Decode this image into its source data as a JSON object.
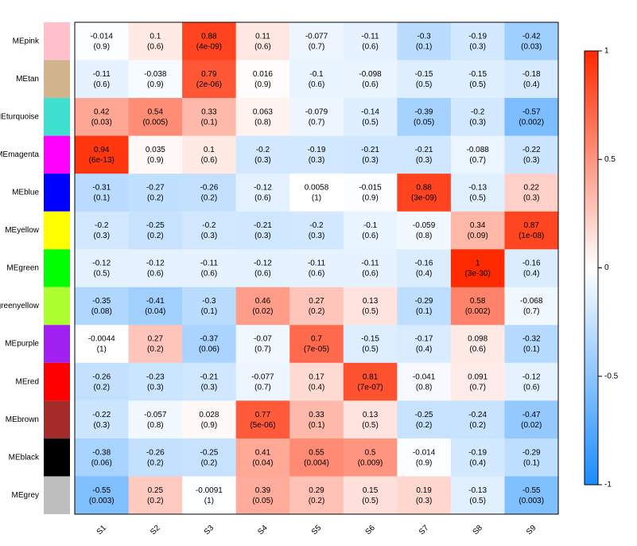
{
  "chart_data": {
    "type": "heatmap",
    "columns": [
      "S1",
      "S2",
      "S3",
      "S4",
      "S5",
      "S6",
      "S7",
      "S8",
      "S9"
    ],
    "rows": [
      "MEpink",
      "MEtan",
      "MEturquoise",
      "MEmagenta",
      "MEblue",
      "MEyellow",
      "MEgreen",
      "MEgreenyellow",
      "MEpurple",
      "MEred",
      "MEbrown",
      "MEblack",
      "MEgrey"
    ],
    "row_colors": [
      "#FFC0CB",
      "#D2B48C",
      "#40E0D0",
      "#FF00FF",
      "#0000FF",
      "#FFFF00",
      "#00FF00",
      "#ADFF2F",
      "#A020F0",
      "#FF0000",
      "#A52A2A",
      "#000000",
      "#BEBEBE"
    ],
    "values": [
      [
        -0.014,
        0.1,
        0.88,
        0.11,
        -0.077,
        -0.11,
        -0.3,
        -0.19,
        -0.42
      ],
      [
        -0.11,
        -0.038,
        0.79,
        0.016,
        -0.1,
        -0.098,
        -0.15,
        -0.15,
        -0.18
      ],
      [
        0.42,
        0.54,
        0.33,
        0.063,
        -0.079,
        -0.14,
        -0.39,
        -0.2,
        -0.57
      ],
      [
        0.94,
        0.035,
        0.1,
        -0.2,
        -0.19,
        -0.21,
        -0.21,
        -0.088,
        -0.22
      ],
      [
        -0.31,
        -0.27,
        -0.26,
        -0.12,
        0.0058,
        -0.015,
        0.88,
        -0.13,
        0.22
      ],
      [
        -0.2,
        -0.25,
        -0.2,
        -0.21,
        -0.2,
        -0.1,
        -0.059,
        0.34,
        0.87
      ],
      [
        -0.12,
        -0.12,
        -0.11,
        -0.12,
        -0.11,
        -0.11,
        -0.16,
        1,
        -0.16
      ],
      [
        -0.35,
        -0.41,
        -0.3,
        0.46,
        0.27,
        0.13,
        -0.29,
        0.58,
        -0.068
      ],
      [
        -0.0044,
        0.27,
        -0.37,
        -0.07,
        0.7,
        -0.15,
        -0.17,
        0.098,
        -0.32
      ],
      [
        -0.26,
        -0.23,
        -0.21,
        -0.077,
        0.17,
        0.81,
        -0.041,
        0.091,
        -0.12
      ],
      [
        -0.22,
        -0.057,
        0.028,
        0.77,
        0.33,
        0.13,
        -0.25,
        -0.24,
        -0.47
      ],
      [
        -0.38,
        -0.26,
        -0.25,
        0.41,
        0.55,
        0.5,
        -0.014,
        -0.19,
        -0.29
      ],
      [
        -0.55,
        0.25,
        -0.0091,
        0.39,
        0.29,
        0.15,
        0.19,
        -0.13,
        -0.55
      ]
    ],
    "p_values": [
      [
        0.9,
        0.6,
        4e-09,
        0.6,
        0.7,
        0.6,
        0.1,
        0.3,
        0.03
      ],
      [
        0.6,
        0.9,
        2e-06,
        0.9,
        0.6,
        0.6,
        0.5,
        0.5,
        0.4
      ],
      [
        0.03,
        0.005,
        0.1,
        0.8,
        0.7,
        0.5,
        0.05,
        0.3,
        0.002
      ],
      [
        6e-13,
        0.9,
        0.6,
        0.3,
        0.3,
        0.3,
        0.3,
        0.7,
        0.3
      ],
      [
        0.1,
        0.2,
        0.2,
        0.6,
        1,
        0.9,
        3e-09,
        0.5,
        0.3
      ],
      [
        0.3,
        0.2,
        0.3,
        0.3,
        0.3,
        0.6,
        0.8,
        0.09,
        1e-08
      ],
      [
        0.5,
        0.6,
        0.6,
        0.6,
        0.6,
        0.6,
        0.4,
        3e-30,
        0.4
      ],
      [
        0.08,
        0.04,
        0.1,
        0.02,
        0.2,
        0.5,
        0.1,
        0.002,
        0.7
      ],
      [
        1,
        0.2,
        0.06,
        0.7,
        7e-05,
        0.5,
        0.4,
        0.6,
        0.1
      ],
      [
        0.2,
        0.3,
        0.3,
        0.7,
        0.4,
        7e-07,
        0.8,
        0.7,
        0.6
      ],
      [
        0.3,
        0.8,
        0.9,
        5e-06,
        0.1,
        0.5,
        0.2,
        0.2,
        0.02
      ],
      [
        0.06,
        0.2,
        0.2,
        0.04,
        0.004,
        0.009,
        0.9,
        0.4,
        0.1
      ],
      [
        0.003,
        0.2,
        1,
        0.05,
        0.2,
        0.5,
        0.3,
        0.5,
        0.003
      ]
    ],
    "p_value_labels": [
      [
        "(0.9)",
        "(0.6)",
        "(4e-09)",
        "(0.6)",
        "(0.7)",
        "(0.6)",
        "(0.1)",
        "(0.3)",
        "(0.03)"
      ],
      [
        "(0.6)",
        "(0.9)",
        "(2e-06)",
        "(0.9)",
        "(0.6)",
        "(0.6)",
        "(0.5)",
        "(0.5)",
        "(0.4)"
      ],
      [
        "(0.03)",
        "(0.005)",
        "(0.1)",
        "(0.8)",
        "(0.7)",
        "(0.5)",
        "(0.05)",
        "(0.3)",
        "(0.002)"
      ],
      [
        "(6e-13)",
        "(0.9)",
        "(0.6)",
        "(0.3)",
        "(0.3)",
        "(0.3)",
        "(0.3)",
        "(0.7)",
        "(0.3)"
      ],
      [
        "(0.1)",
        "(0.2)",
        "(0.2)",
        "(0.6)",
        "(1)",
        "(0.9)",
        "(3e-09)",
        "(0.5)",
        "(0.3)"
      ],
      [
        "(0.3)",
        "(0.2)",
        "(0.3)",
        "(0.3)",
        "(0.3)",
        "(0.6)",
        "(0.8)",
        "(0.09)",
        "(1e-08)"
      ],
      [
        "(0.5)",
        "(0.6)",
        "(0.6)",
        "(0.6)",
        "(0.6)",
        "(0.6)",
        "(0.4)",
        "(3e-30)",
        "(0.4)"
      ],
      [
        "(0.08)",
        "(0.04)",
        "(0.1)",
        "(0.02)",
        "(0.2)",
        "(0.5)",
        "(0.1)",
        "(0.002)",
        "(0.7)"
      ],
      [
        "(1)",
        "(0.2)",
        "(0.06)",
        "(0.7)",
        "(7e-05)",
        "(0.5)",
        "(0.4)",
        "(0.6)",
        "(0.1)"
      ],
      [
        "(0.2)",
        "(0.3)",
        "(0.3)",
        "(0.7)",
        "(0.4)",
        "(7e-07)",
        "(0.8)",
        "(0.7)",
        "(0.6)"
      ],
      [
        "(0.3)",
        "(0.8)",
        "(0.9)",
        "(5e-06)",
        "(0.1)",
        "(0.5)",
        "(0.2)",
        "(0.2)",
        "(0.02)"
      ],
      [
        "(0.06)",
        "(0.2)",
        "(0.2)",
        "(0.04)",
        "(0.004)",
        "(0.009)",
        "(0.9)",
        "(0.4)",
        "(0.1)"
      ],
      [
        "(0.003)",
        "(0.2)",
        "(1)",
        "(0.05)",
        "(0.2)",
        "(0.5)",
        "(0.3)",
        "(0.5)",
        "(0.003)"
      ]
    ],
    "zlim": [
      -1,
      1
    ],
    "colorbar_ticks": [
      -1,
      -0.5,
      0,
      0.5,
      1
    ],
    "colors": [
      "#1a8cff",
      "#ffffff",
      "#ff2a00"
    ]
  }
}
